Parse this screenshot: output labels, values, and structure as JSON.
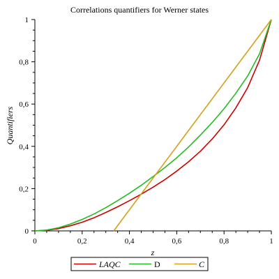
{
  "chart_data": {
    "type": "line",
    "title": "Correlations quantifiers for Werner states",
    "xlabel": "z",
    "ylabel": "Quantifiers",
    "xlim": [
      0,
      1
    ],
    "ylim": [
      0,
      1
    ],
    "x_ticks": [
      "0",
      "0,2",
      "0,4",
      "0,6",
      "0,8",
      "1"
    ],
    "y_ticks": [
      "0",
      "0,2",
      "0,4",
      "0,6",
      "0,8",
      "1"
    ],
    "legend_position": "bottom",
    "series": [
      {
        "name": "LAQC",
        "color": "#cc0000",
        "italic": true,
        "x": [
          0,
          0.05,
          0.1,
          0.15,
          0.2,
          0.25,
          0.3,
          0.35,
          0.4,
          0.45,
          0.5,
          0.55,
          0.6,
          0.65,
          0.7,
          0.75,
          0.8,
          0.85,
          0.9,
          0.95,
          1.0
        ],
        "y": [
          0,
          0.003,
          0.011,
          0.024,
          0.041,
          0.062,
          0.087,
          0.114,
          0.143,
          0.174,
          0.207,
          0.243,
          0.283,
          0.327,
          0.377,
          0.435,
          0.502,
          0.582,
          0.678,
          0.808,
          1.0
        ]
      },
      {
        "name": "D",
        "color": "#22bb22",
        "italic": false,
        "x": [
          0,
          0.05,
          0.1,
          0.15,
          0.2,
          0.25,
          0.3,
          0.35,
          0.4,
          0.45,
          0.5,
          0.55,
          0.6,
          0.65,
          0.7,
          0.75,
          0.8,
          0.85,
          0.9,
          0.95,
          1.0
        ],
        "y": [
          0,
          0.004,
          0.015,
          0.032,
          0.054,
          0.08,
          0.11,
          0.143,
          0.178,
          0.216,
          0.257,
          0.3,
          0.346,
          0.397,
          0.453,
          0.513,
          0.578,
          0.651,
          0.733,
          0.838,
          1.0
        ]
      },
      {
        "name": "C",
        "color": "#d4a017",
        "italic": true,
        "x": [
          0.3333,
          1.0
        ],
        "y": [
          0,
          1.0
        ]
      }
    ]
  }
}
